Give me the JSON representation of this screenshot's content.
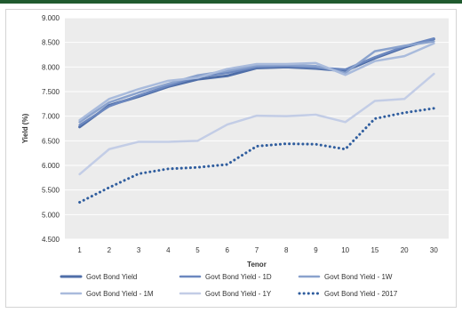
{
  "chart_data": {
    "type": "line",
    "xlabel": "Tenor",
    "ylabel": "Yield (%)",
    "categories": [
      "1",
      "2",
      "3",
      "4",
      "5",
      "6",
      "7",
      "8",
      "9",
      "10",
      "15",
      "20",
      "30"
    ],
    "yticks": [
      "4.500",
      "5.000",
      "5.500",
      "6.000",
      "6.500",
      "7.000",
      "7.500",
      "8.000",
      "8.500",
      "9.000"
    ],
    "ylim": [
      4.5,
      9.0
    ],
    "grid": true,
    "plot_background": "#ececec",
    "legend_position": "bottom",
    "series": [
      {
        "name": "Govt Bond Yield",
        "color": "#4f6ea8",
        "width": 3,
        "dash": "",
        "values": [
          6.78,
          7.22,
          7.4,
          7.6,
          7.75,
          7.82,
          7.98,
          8.0,
          7.97,
          7.92,
          8.18,
          8.4,
          8.57
        ]
      },
      {
        "name": "Govt Bond Yield - 1D",
        "color": "#6c88bf",
        "width": 2.5,
        "dash": "",
        "values": [
          6.82,
          7.2,
          7.42,
          7.62,
          7.8,
          7.88,
          8.0,
          8.02,
          7.99,
          7.95,
          8.2,
          8.42,
          8.58
        ]
      },
      {
        "name": "Govt Bond Yield - 1W",
        "color": "#8aa2cd",
        "width": 2.5,
        "dash": "",
        "values": [
          6.88,
          7.28,
          7.48,
          7.66,
          7.83,
          7.92,
          8.03,
          8.04,
          8.02,
          7.88,
          8.32,
          8.43,
          8.52
        ]
      },
      {
        "name": "Govt Bond Yield - 1M",
        "color": "#a9bbdc",
        "width": 2.5,
        "dash": "",
        "values": [
          6.92,
          7.35,
          7.55,
          7.72,
          7.78,
          7.96,
          8.06,
          8.06,
          8.08,
          7.84,
          8.12,
          8.22,
          8.48
        ]
      },
      {
        "name": "Govt Bond Yield - 1Y",
        "color": "#c3cde6",
        "width": 2.5,
        "dash": "",
        "values": [
          5.82,
          6.33,
          6.48,
          6.48,
          6.5,
          6.83,
          7.01,
          7.0,
          7.03,
          6.88,
          7.31,
          7.35,
          7.86
        ]
      },
      {
        "name": "Govt Bond Yield - 2017",
        "color": "#2f5d9e",
        "width": 3,
        "dash": "dotted",
        "values": [
          5.25,
          5.55,
          5.83,
          5.93,
          5.96,
          6.02,
          6.39,
          6.44,
          6.43,
          6.33,
          6.95,
          7.07,
          7.16
        ]
      }
    ]
  }
}
